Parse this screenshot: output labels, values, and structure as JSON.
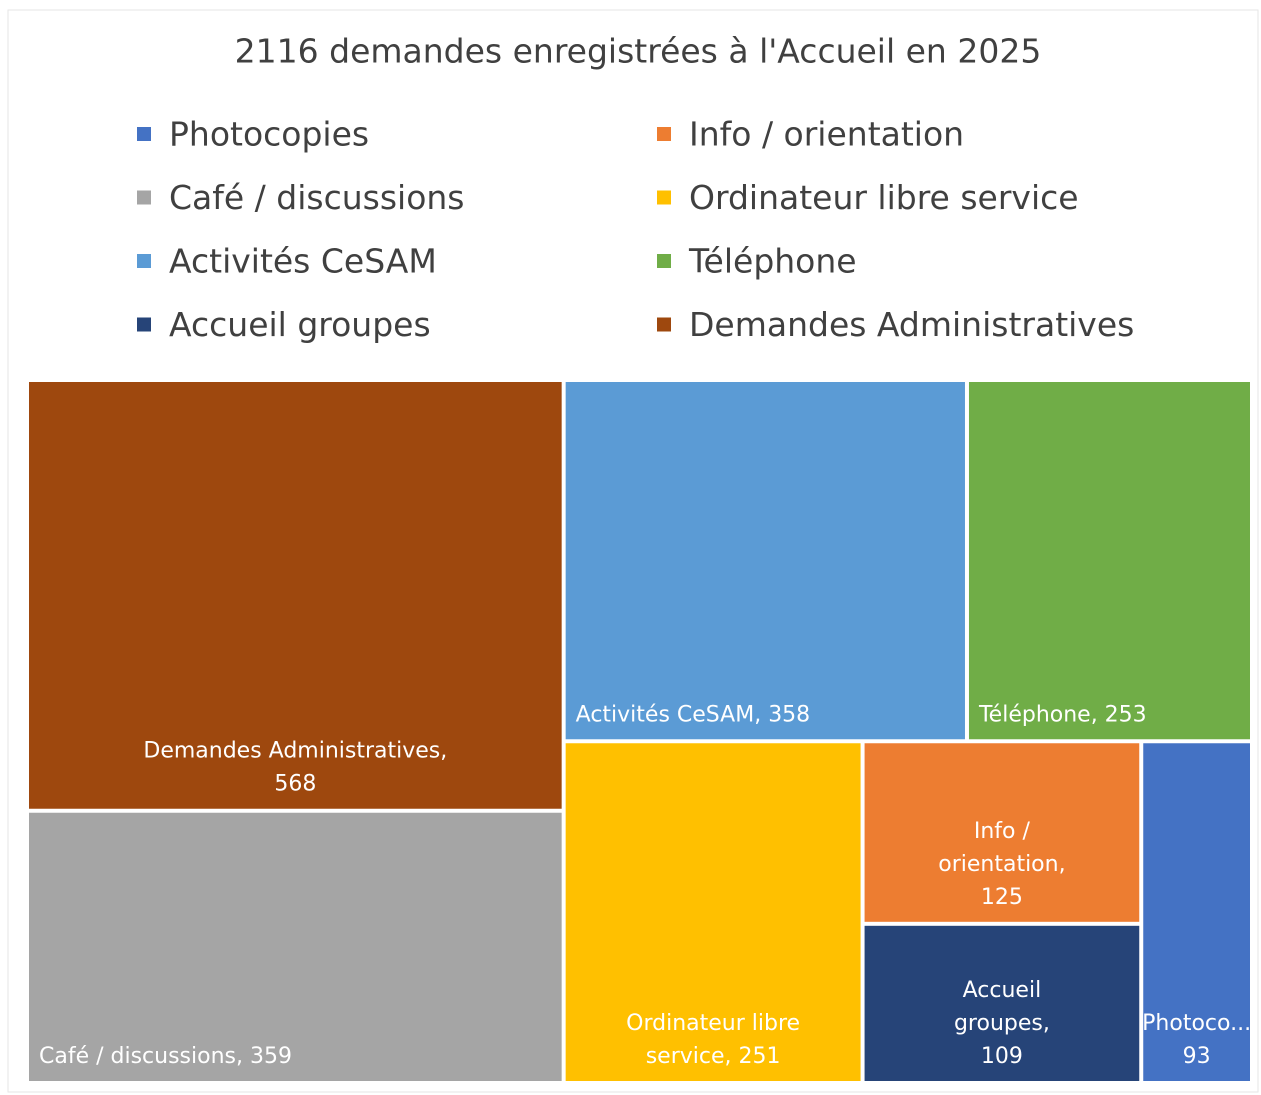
{
  "chart_data": {
    "type": "treemap",
    "title": "2116 demandes enregistrées à l'Accueil en 2025",
    "series": [
      {
        "name": "Photocopies",
        "color": "#4472c4",
        "values": [
          93
        ],
        "value_labels": [
          [
            "Photoco...",
            "93"
          ]
        ]
      },
      {
        "name": "Info / orientation",
        "color": "#ed7d31",
        "values": [
          125
        ],
        "value_labels": [
          [
            "Info /",
            "orientation,",
            "125"
          ]
        ]
      },
      {
        "name": "Café / discussions",
        "color": "#a5a5a5",
        "values": [
          359
        ],
        "value_labels": [
          [
            "Café / discussions, 359"
          ]
        ]
      },
      {
        "name": "Ordinateur libre service",
        "color": "#ffc000",
        "values": [
          251
        ],
        "value_labels": [
          [
            "Ordinateur libre",
            "service, 251"
          ]
        ]
      },
      {
        "name": "Activités CeSAM",
        "color": "#5b9bd5",
        "values": [
          358
        ],
        "value_labels": [
          [
            "Activités CeSAM, 358"
          ]
        ]
      },
      {
        "name": "Téléphone",
        "color": "#70ad47",
        "values": [
          253
        ],
        "value_labels": [
          [
            "Téléphone, 253"
          ]
        ]
      },
      {
        "name": "Accueil groupes",
        "color": "#264478",
        "values": [
          109
        ],
        "value_labels": [
          [
            "Accueil",
            "groupes,",
            "109"
          ]
        ]
      },
      {
        "name": "Demandes Administratives",
        "color": "#9e480e",
        "values": [
          568
        ],
        "value_labels": [
          [
            "Demandes Administratives,",
            "568"
          ]
        ]
      }
    ],
    "legend": "top"
  }
}
